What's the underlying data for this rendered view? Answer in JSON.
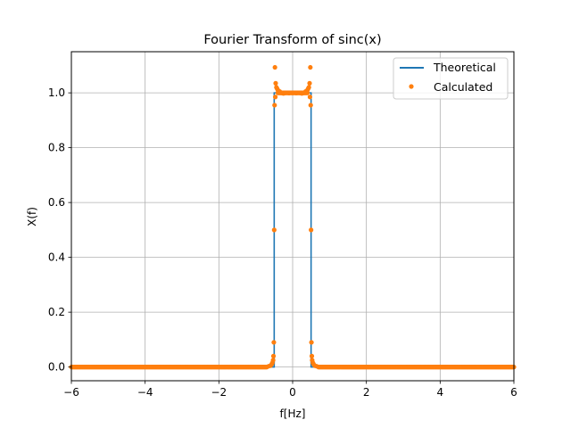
{
  "chart_data": {
    "type": "line",
    "title": "Fourier Transform of sinc(x)",
    "xlabel": "f[Hz]",
    "ylabel": "X(f)",
    "xlim": [
      -6,
      6
    ],
    "ylim": [
      -0.05,
      1.15
    ],
    "xticks": [
      -6,
      -4,
      -2,
      0,
      2,
      4,
      6
    ],
    "xtick_labels": [
      "−6",
      "−4",
      "−2",
      "0",
      "2",
      "4",
      "6"
    ],
    "yticks": [
      0.0,
      0.2,
      0.4,
      0.6,
      0.8,
      1.0
    ],
    "ytick_labels": [
      "0.0",
      "0.2",
      "0.4",
      "0.6",
      "0.8",
      "1.0"
    ],
    "grid": true,
    "legend_position": "top-right",
    "series": [
      {
        "name": "Theoretical",
        "style": "line",
        "color": "#1f77b4",
        "x": [
          -6,
          -0.5,
          -0.5,
          0.5,
          0.5,
          6
        ],
        "y": [
          0,
          0,
          1,
          1,
          0,
          0
        ]
      },
      {
        "name": "Calculated",
        "style": "markers",
        "color": "#ff7f0e",
        "x": [
          -0.5,
          -0.49,
          -0.48,
          -0.47,
          -0.46,
          -0.44,
          -0.42,
          -0.4,
          -0.35,
          -0.3,
          -0.25,
          -0.2,
          -0.1,
          0.0,
          0.1,
          0.2,
          0.25,
          0.3,
          0.35,
          0.4,
          0.42,
          0.44,
          0.46,
          0.47,
          0.48,
          0.49,
          0.5,
          -0.51,
          -0.52,
          -0.53,
          -0.55,
          -0.57,
          -0.6,
          -0.65,
          -0.7,
          0.51,
          0.52,
          0.53,
          0.55,
          0.57,
          0.6,
          0.65,
          0.7
        ],
        "y": [
          0.5,
          0.955,
          1.093,
          0.985,
          1.035,
          1.02,
          1.015,
          1.01,
          1.005,
          1.0,
          0.998,
          1.0,
          0.999,
          1.0,
          0.999,
          1.0,
          0.998,
          1.0,
          1.005,
          1.01,
          1.015,
          1.02,
          1.035,
          0.985,
          1.093,
          0.955,
          0.5,
          0.09,
          0.04,
          0.025,
          0.015,
          0.01,
          0.005,
          0.003,
          0.0,
          0.09,
          0.04,
          0.025,
          0.015,
          0.01,
          0.005,
          0.003,
          0.0
        ],
        "dense_zero_ranges": [
          [
            -6,
            -0.72
          ],
          [
            0.72,
            6
          ]
        ]
      }
    ]
  }
}
